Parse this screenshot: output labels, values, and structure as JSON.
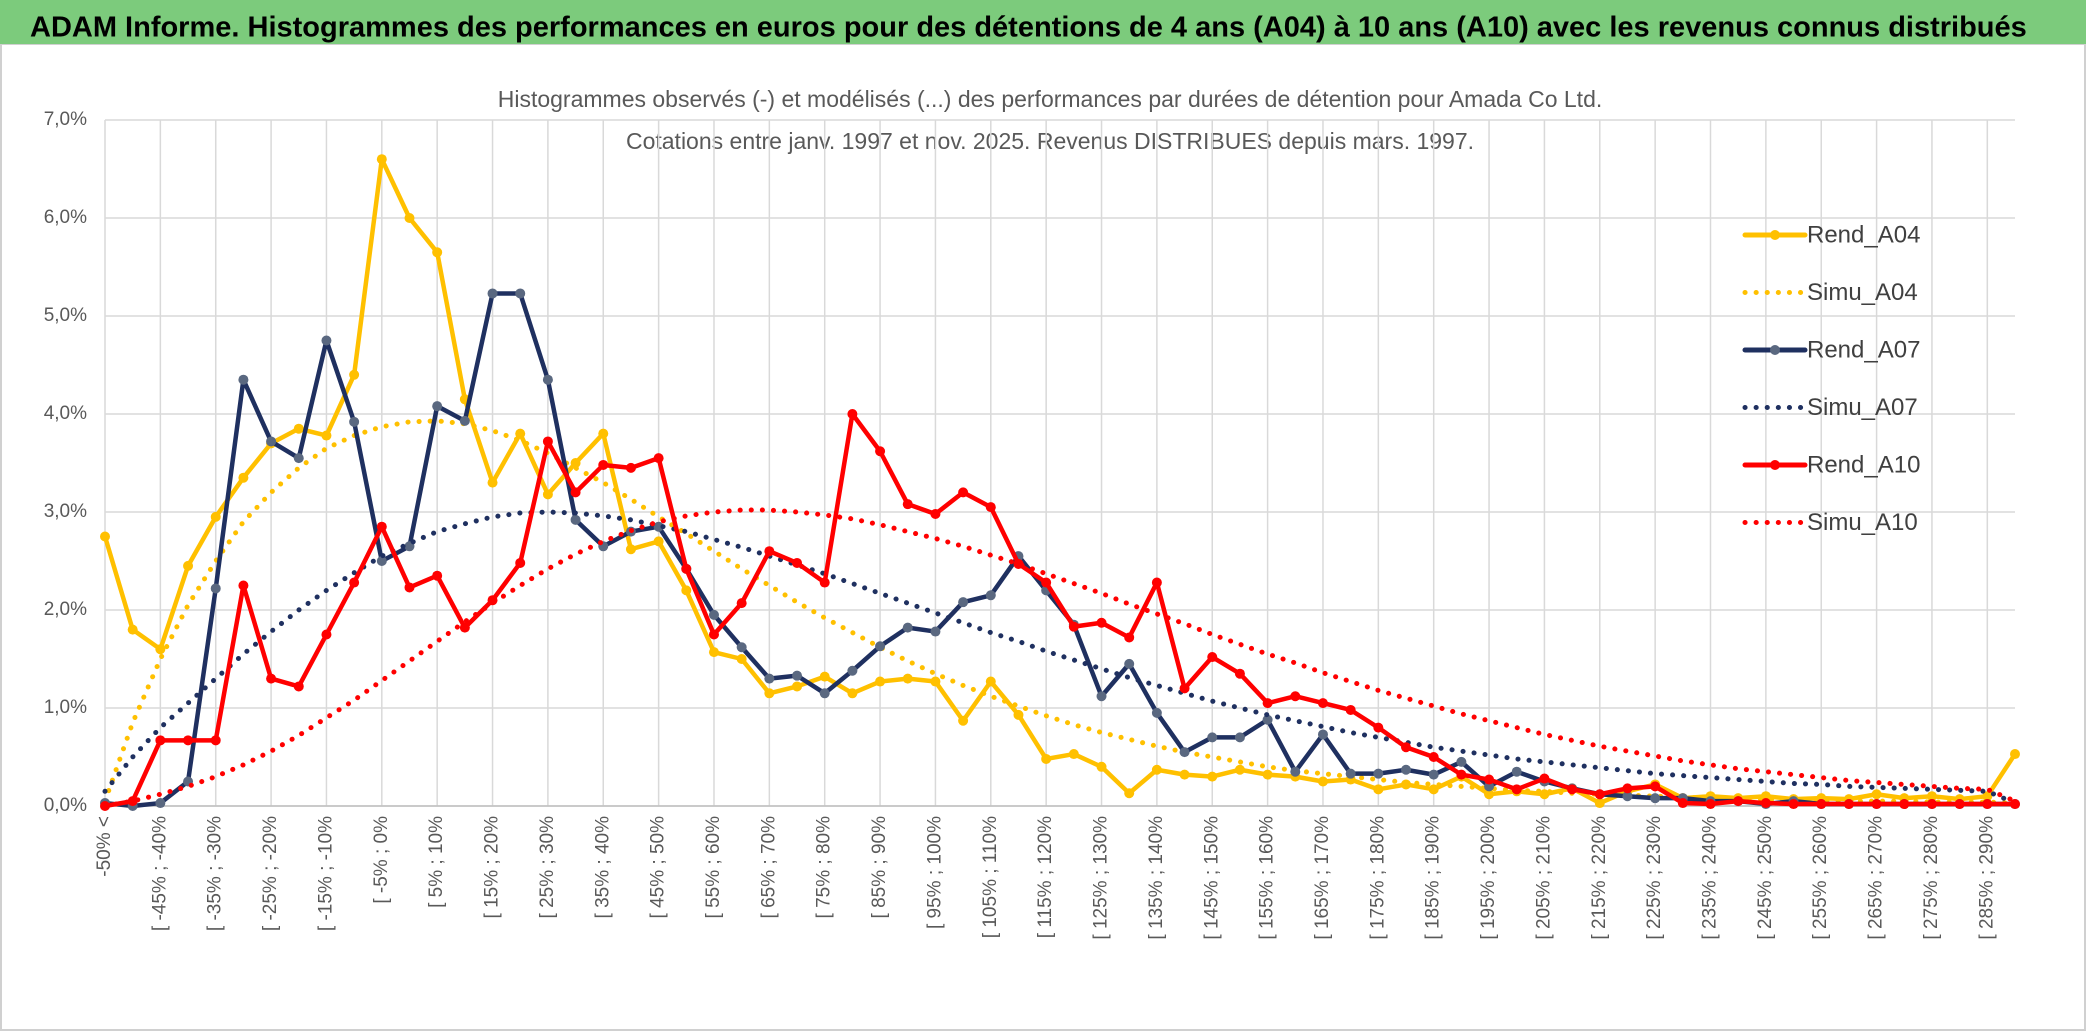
{
  "chart_data": {
    "type": "line",
    "header": "ADAM Informe. Histogrammes des performances en euros pour des détentions de 4 ans (A04) à 10 ans (A10) avec les revenus connus distribués",
    "title": "Histogrammes observés (-) et modélisés (...) des performances par durées de détention pour Amada Co Ltd.",
    "subtitle": "Cotations entre janv. 1997 et nov. 2025. Revenus DISTRIBUES depuis mars. 1997.",
    "legend": "right",
    "grid": true,
    "ylim": [
      0,
      7
    ],
    "yticks": [
      {
        "value": 0,
        "label": "0,0%"
      },
      {
        "value": 1,
        "label": "1,0%"
      },
      {
        "value": 2,
        "label": "2,0%"
      },
      {
        "value": 3,
        "label": "3,0%"
      },
      {
        "value": 4,
        "label": "4,0%"
      },
      {
        "value": 5,
        "label": "5,0%"
      },
      {
        "value": 6,
        "label": "6,0%"
      },
      {
        "value": 7,
        "label": "7,0%"
      }
    ],
    "categories": [
      "-50% <",
      null,
      "[ -45% ; -40%",
      null,
      "[ -35% ; -30%",
      null,
      "[ -25% ; -20%",
      null,
      "[ -15% ; -10%",
      null,
      "[ -5% ; 0%",
      null,
      "[ 5% ; 10%",
      null,
      "[ 15% ; 20%",
      null,
      "[ 25% ; 30%",
      null,
      "[ 35% ; 40%",
      null,
      "[ 45% ; 50%",
      null,
      "[ 55% ; 60%",
      null,
      "[ 65% ; 70%",
      null,
      "[ 75% ; 80%",
      null,
      "[ 85% ; 90%",
      null,
      "[ 95% ; 100%",
      null,
      "[ 105% ; 110%",
      null,
      "[ 115% ; 120%",
      null,
      "[ 125% ; 130%",
      null,
      "[ 135% ; 140%",
      null,
      "[ 145% ; 150%",
      null,
      "[ 155% ; 160%",
      null,
      "[ 165% ; 170%",
      null,
      "[ 175% ; 180%",
      null,
      "[ 185% ; 190%",
      null,
      "[ 195% ; 200%",
      null,
      "[ 205% ; 210%",
      null,
      "[ 215% ; 220%",
      null,
      "[ 225% ; 230%",
      null,
      "[ 235% ; 240%",
      null,
      "[ 245% ; 250%",
      null,
      "[ 255% ; 260%",
      null,
      "[ 265% ; 270%",
      null,
      "[ 275% ; 280%",
      null,
      "[ 285% ; 290%",
      null
    ],
    "series": [
      {
        "name": "Rend_A04",
        "color": "#ffc000",
        "marker_color": "#ffc000",
        "style": "solid",
        "values": [
          2.75,
          1.8,
          1.6,
          2.45,
          2.95,
          3.35,
          3.7,
          3.85,
          3.78,
          4.4,
          6.6,
          6.0,
          5.65,
          4.15,
          3.3,
          3.8,
          3.18,
          3.5,
          3.8,
          2.62,
          2.7,
          2.2,
          1.57,
          1.5,
          1.15,
          1.22,
          1.32,
          1.15,
          1.27,
          1.3,
          1.27,
          0.87,
          1.27,
          0.93,
          0.48,
          0.53,
          0.4,
          0.13,
          0.37,
          0.32,
          0.3,
          0.37,
          0.32,
          0.3,
          0.25,
          0.27,
          0.17,
          0.22,
          0.17,
          0.3,
          0.12,
          0.15,
          0.12,
          0.18,
          0.03,
          0.15,
          0.22,
          0.08,
          0.1,
          0.08,
          0.1,
          0.07,
          0.08,
          0.07,
          0.12,
          0.08,
          0.1,
          0.07,
          0.1,
          0.53
        ]
      },
      {
        "name": "Simu_A04",
        "color": "#ffc000",
        "style": "dotted",
        "values": [
          0.05,
          0.85,
          1.5,
          2.05,
          2.5,
          2.9,
          3.2,
          3.45,
          3.65,
          3.78,
          3.87,
          3.92,
          3.93,
          3.9,
          3.83,
          3.73,
          3.6,
          3.45,
          3.3,
          3.13,
          2.95,
          2.78,
          2.6,
          2.42,
          2.25,
          2.08,
          1.92,
          1.77,
          1.62,
          1.48,
          1.35,
          1.23,
          1.12,
          1.02,
          0.92,
          0.83,
          0.75,
          0.68,
          0.61,
          0.55,
          0.5,
          0.45,
          0.4,
          0.36,
          0.33,
          0.3,
          0.27,
          0.24,
          0.22,
          0.2,
          0.18,
          0.16,
          0.15,
          0.13,
          0.12,
          0.11,
          0.1,
          0.09,
          0.08,
          0.08,
          0.07,
          0.06,
          0.06,
          0.05,
          0.05,
          0.05,
          0.04,
          0.04,
          0.04,
          0.03
        ]
      },
      {
        "name": "Rend_A07",
        "color": "#1f3060",
        "marker_color": "#5a6880",
        "style": "solid",
        "values": [
          0.03,
          0.0,
          0.03,
          0.25,
          2.22,
          4.35,
          3.72,
          3.55,
          4.75,
          3.92,
          2.5,
          2.65,
          4.08,
          3.93,
          5.23,
          5.23,
          4.35,
          2.92,
          2.65,
          2.8,
          2.85,
          2.42,
          1.95,
          1.62,
          1.3,
          1.33,
          1.15,
          1.38,
          1.63,
          1.82,
          1.78,
          2.08,
          2.15,
          2.55,
          2.2,
          1.85,
          1.12,
          1.45,
          0.95,
          0.55,
          0.7,
          0.7,
          0.88,
          0.35,
          0.73,
          0.33,
          0.33,
          0.37,
          0.32,
          0.45,
          0.2,
          0.35,
          0.25,
          0.18,
          0.12,
          0.1,
          0.08,
          0.08,
          0.05,
          0.05,
          0.02,
          0.05,
          0.02,
          0.02,
          0.02,
          0.02,
          0.02,
          0.02,
          0.02,
          0.02
        ]
      },
      {
        "name": "Simu_A07",
        "color": "#1f3060",
        "style": "dotted",
        "values": [
          0.15,
          0.5,
          0.8,
          1.05,
          1.3,
          1.55,
          1.78,
          2.0,
          2.2,
          2.38,
          2.55,
          2.68,
          2.8,
          2.88,
          2.95,
          2.99,
          3.0,
          2.99,
          2.96,
          2.92,
          2.86,
          2.8,
          2.72,
          2.64,
          2.55,
          2.46,
          2.37,
          2.27,
          2.17,
          2.07,
          1.97,
          1.87,
          1.77,
          1.68,
          1.58,
          1.49,
          1.4,
          1.31,
          1.23,
          1.15,
          1.07,
          1.0,
          0.93,
          0.87,
          0.81,
          0.75,
          0.7,
          0.65,
          0.6,
          0.56,
          0.52,
          0.48,
          0.45,
          0.42,
          0.39,
          0.36,
          0.33,
          0.31,
          0.29,
          0.27,
          0.25,
          0.23,
          0.22,
          0.2,
          0.19,
          0.18,
          0.17,
          0.16,
          0.15,
          0.03
        ]
      },
      {
        "name": "Rend_A10",
        "color": "#ff0000",
        "marker_color": "#ff0000",
        "style": "solid",
        "values": [
          0.0,
          0.05,
          0.67,
          0.67,
          0.67,
          2.25,
          1.3,
          1.22,
          1.75,
          2.28,
          2.85,
          2.23,
          2.35,
          1.82,
          2.1,
          2.48,
          3.72,
          3.2,
          3.48,
          3.45,
          3.55,
          2.42,
          1.75,
          2.07,
          2.6,
          2.48,
          2.28,
          4.0,
          3.62,
          3.08,
          2.98,
          3.2,
          3.05,
          2.47,
          2.28,
          1.83,
          1.87,
          1.72,
          2.28,
          1.2,
          1.52,
          1.35,
          1.05,
          1.12,
          1.05,
          0.98,
          0.8,
          0.6,
          0.5,
          0.32,
          0.27,
          0.17,
          0.28,
          0.17,
          0.12,
          0.18,
          0.2,
          0.03,
          0.02,
          0.05,
          0.03,
          0.02,
          0.02,
          0.02,
          0.02,
          0.02,
          0.02,
          0.02,
          0.02,
          0.02
        ]
      },
      {
        "name": "Simu_A10",
        "color": "#ff0000",
        "style": "dotted",
        "values": [
          0.0,
          0.05,
          0.12,
          0.2,
          0.3,
          0.42,
          0.56,
          0.72,
          0.9,
          1.08,
          1.28,
          1.48,
          1.68,
          1.88,
          2.07,
          2.25,
          2.42,
          2.57,
          2.7,
          2.81,
          2.9,
          2.96,
          3.0,
          3.02,
          3.02,
          3.0,
          2.97,
          2.93,
          2.87,
          2.8,
          2.73,
          2.65,
          2.56,
          2.47,
          2.37,
          2.27,
          2.17,
          2.06,
          1.96,
          1.86,
          1.75,
          1.65,
          1.55,
          1.46,
          1.36,
          1.27,
          1.18,
          1.1,
          1.02,
          0.94,
          0.87,
          0.8,
          0.73,
          0.67,
          0.61,
          0.56,
          0.51,
          0.46,
          0.42,
          0.38,
          0.35,
          0.32,
          0.29,
          0.26,
          0.24,
          0.22,
          0.2,
          0.18,
          0.17,
          0.05
        ]
      }
    ]
  }
}
